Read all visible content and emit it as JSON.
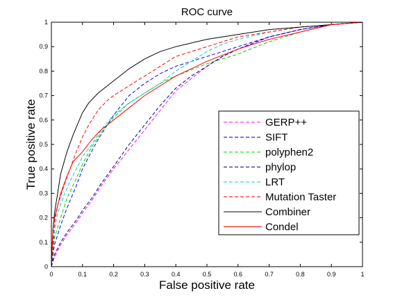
{
  "chart_data": {
    "type": "line",
    "title": "ROC curve",
    "xlabel": "False positive rate",
    "ylabel": "True positive rate",
    "xlim": [
      0,
      1
    ],
    "ylim": [
      0,
      1
    ],
    "grid": false,
    "legend_position": "right",
    "x_ticks": [
      "0",
      "0.1",
      "0.2",
      "0.3",
      "0.4",
      "0.5",
      "0.6",
      "0.7",
      "0.8",
      "0.9",
      "1"
    ],
    "y_ticks": [
      "0",
      "0.1",
      "0.2",
      "0.3",
      "0.4",
      "0.5",
      "0.6",
      "0.7",
      "0.8",
      "0.9",
      "1"
    ],
    "series": [
      {
        "name": "GERP++",
        "color": "#ff00ff",
        "dash": "dashed",
        "x": [
          0,
          0.01,
          0.03,
          0.05,
          0.08,
          0.1,
          0.13,
          0.16,
          0.2,
          0.25,
          0.3,
          0.35,
          0.4,
          0.45,
          0.5,
          0.55,
          0.6,
          0.7,
          0.8,
          0.9,
          1.0
        ],
        "y": [
          0,
          0.04,
          0.09,
          0.13,
          0.18,
          0.22,
          0.27,
          0.33,
          0.4,
          0.48,
          0.56,
          0.64,
          0.72,
          0.77,
          0.82,
          0.86,
          0.89,
          0.94,
          0.97,
          0.99,
          1.0
        ]
      },
      {
        "name": "SIFT",
        "color": "#0000ff",
        "dash": "dashed",
        "x": [
          0,
          0.01,
          0.03,
          0.05,
          0.08,
          0.1,
          0.12,
          0.15,
          0.18,
          0.2,
          0.25,
          0.3,
          0.35,
          0.4,
          0.5,
          0.6,
          0.7,
          0.8,
          0.9,
          1.0
        ],
        "y": [
          0,
          0.09,
          0.17,
          0.24,
          0.33,
          0.4,
          0.45,
          0.52,
          0.58,
          0.62,
          0.7,
          0.75,
          0.79,
          0.82,
          0.86,
          0.9,
          0.94,
          0.97,
          0.99,
          1.0
        ]
      },
      {
        "name": "polyphen2",
        "color": "#00cc00",
        "dash": "dashed",
        "x": [
          0,
          0.01,
          0.03,
          0.05,
          0.08,
          0.1,
          0.13,
          0.16,
          0.2,
          0.25,
          0.3,
          0.35,
          0.4,
          0.5,
          0.6,
          0.7,
          0.8,
          0.9,
          1.0
        ],
        "y": [
          0,
          0.12,
          0.2,
          0.28,
          0.36,
          0.42,
          0.49,
          0.55,
          0.61,
          0.67,
          0.71,
          0.75,
          0.78,
          0.83,
          0.87,
          0.92,
          0.96,
          0.99,
          1.0
        ]
      },
      {
        "name": "phylop",
        "color": "#000080",
        "dash": "dashed",
        "x": [
          0,
          0.01,
          0.03,
          0.05,
          0.08,
          0.1,
          0.13,
          0.16,
          0.2,
          0.25,
          0.3,
          0.35,
          0.4,
          0.45,
          0.5,
          0.55,
          0.6,
          0.7,
          0.8,
          0.9,
          1.0
        ],
        "y": [
          0,
          0.05,
          0.1,
          0.14,
          0.19,
          0.23,
          0.28,
          0.34,
          0.41,
          0.5,
          0.58,
          0.66,
          0.73,
          0.78,
          0.82,
          0.86,
          0.89,
          0.94,
          0.97,
          0.99,
          1.0
        ]
      },
      {
        "name": "LRT",
        "color": "#00cccc",
        "dash": "dashed",
        "x": [
          0,
          0.01,
          0.02,
          0.04,
          0.06,
          0.08,
          0.1,
          0.13,
          0.16,
          0.2,
          0.25,
          0.3,
          0.35,
          0.4,
          0.45,
          0.5,
          0.55,
          0.6,
          0.7,
          0.8,
          0.9,
          1.0
        ],
        "y": [
          0,
          0.15,
          0.22,
          0.29,
          0.35,
          0.4,
          0.45,
          0.5,
          0.56,
          0.62,
          0.67,
          0.71,
          0.75,
          0.8,
          0.84,
          0.88,
          0.91,
          0.93,
          0.96,
          0.98,
          0.99,
          1.0
        ]
      },
      {
        "name": "Mutation Taster",
        "color": "#ff0000",
        "dash": "dashed",
        "x": [
          0,
          0.01,
          0.02,
          0.04,
          0.06,
          0.08,
          0.1,
          0.12,
          0.15,
          0.18,
          0.2,
          0.25,
          0.3,
          0.35,
          0.4,
          0.5,
          0.6,
          0.7,
          0.8,
          0.9,
          1.0
        ],
        "y": [
          0,
          0.18,
          0.25,
          0.33,
          0.4,
          0.47,
          0.53,
          0.58,
          0.64,
          0.68,
          0.7,
          0.74,
          0.78,
          0.82,
          0.86,
          0.9,
          0.94,
          0.96,
          0.98,
          0.99,
          1.0
        ]
      },
      {
        "name": "Combiner",
        "color": "#000000",
        "dash": "solid",
        "x": [
          0,
          0.005,
          0.01,
          0.02,
          0.03,
          0.05,
          0.07,
          0.09,
          0.1,
          0.12,
          0.15,
          0.18,
          0.2,
          0.25,
          0.3,
          0.35,
          0.4,
          0.5,
          0.6,
          0.7,
          0.8,
          0.9,
          1.0
        ],
        "y": [
          0,
          0.15,
          0.22,
          0.3,
          0.38,
          0.47,
          0.54,
          0.6,
          0.63,
          0.67,
          0.71,
          0.74,
          0.76,
          0.81,
          0.85,
          0.88,
          0.9,
          0.93,
          0.95,
          0.97,
          0.98,
          0.99,
          1.0
        ]
      },
      {
        "name": "Condel",
        "color": "#ff0000",
        "dash": "solid",
        "x": [
          0,
          0.005,
          0.01,
          0.02,
          0.03,
          0.05,
          0.07,
          0.1,
          0.13,
          0.16,
          0.2,
          0.25,
          0.3,
          0.35,
          0.4,
          0.45,
          0.5,
          0.6,
          0.7,
          0.8,
          0.9,
          1.0
        ],
        "y": [
          0,
          0.15,
          0.2,
          0.25,
          0.3,
          0.37,
          0.43,
          0.47,
          0.52,
          0.56,
          0.6,
          0.65,
          0.7,
          0.74,
          0.78,
          0.81,
          0.84,
          0.89,
          0.93,
          0.96,
          0.99,
          1.0
        ]
      }
    ]
  }
}
